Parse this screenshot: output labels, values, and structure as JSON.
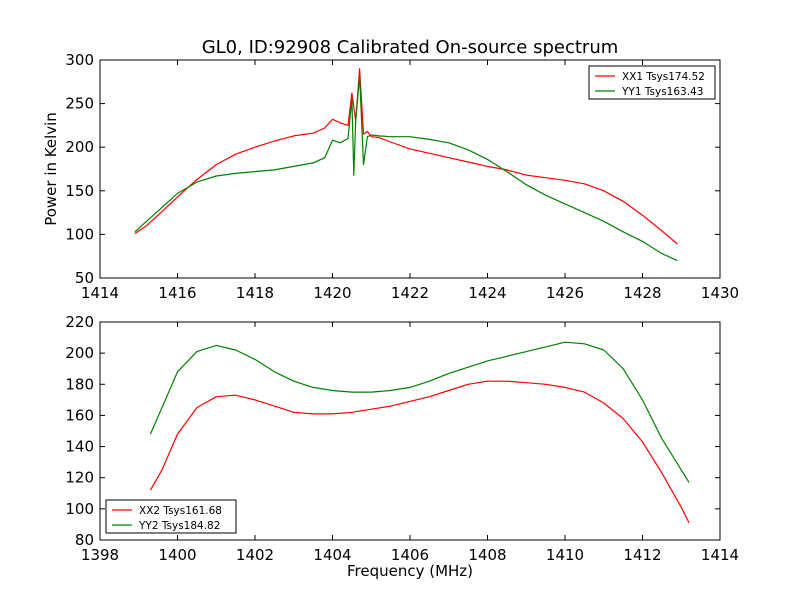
{
  "figure": {
    "title": "GL0, ID:92908 Calibrated On-source spectrum",
    "xlabel": "Frequency (MHz)"
  },
  "chart_data": [
    {
      "type": "line",
      "title": "GL0, ID:92908 Calibrated On-source spectrum",
      "xlabel": "",
      "ylabel": "Power in Kelvin",
      "xlim": [
        1414,
        1430
      ],
      "ylim": [
        50,
        300
      ],
      "xticks": [
        1414,
        1416,
        1418,
        1420,
        1422,
        1424,
        1426,
        1428,
        1430
      ],
      "yticks": [
        50,
        100,
        150,
        200,
        250,
        300
      ],
      "grid": false,
      "legend_position": "top-right",
      "series": [
        {
          "name": "XX1 Tsys174.52",
          "color": "#ff0000",
          "x": [
            1414.9,
            1415.2,
            1415.5,
            1416.0,
            1416.5,
            1417.0,
            1417.5,
            1418.0,
            1418.5,
            1419.0,
            1419.5,
            1419.8,
            1420.0,
            1420.2,
            1420.4,
            1420.5,
            1420.6,
            1420.7,
            1420.8,
            1420.9,
            1421.0,
            1421.2,
            1421.5,
            1422.0,
            1422.5,
            1423.0,
            1423.5,
            1424.0,
            1424.5,
            1425.0,
            1425.5,
            1426.0,
            1426.5,
            1427.0,
            1427.5,
            1428.0,
            1428.5,
            1428.9
          ],
          "y": [
            101,
            110,
            122,
            143,
            163,
            180,
            192,
            200,
            207,
            213,
            216,
            222,
            232,
            228,
            225,
            262,
            230,
            290,
            215,
            218,
            212,
            211,
            206,
            198,
            193,
            188,
            183,
            178,
            174,
            168,
            165,
            162,
            158,
            150,
            138,
            122,
            104,
            89
          ]
        },
        {
          "name": "YY1 Tsys163.43",
          "color": "#008000",
          "x": [
            1414.9,
            1415.2,
            1415.5,
            1416.0,
            1416.5,
            1417.0,
            1417.5,
            1418.0,
            1418.5,
            1419.0,
            1419.5,
            1419.8,
            1420.0,
            1420.2,
            1420.4,
            1420.5,
            1420.55,
            1420.6,
            1420.7,
            1420.8,
            1420.9,
            1421.0,
            1421.2,
            1421.5,
            1422.0,
            1422.5,
            1423.0,
            1423.5,
            1424.0,
            1424.5,
            1425.0,
            1425.5,
            1426.0,
            1426.5,
            1427.0,
            1427.5,
            1428.0,
            1428.5,
            1428.9
          ],
          "y": [
            103,
            115,
            127,
            147,
            160,
            167,
            170,
            172,
            174,
            178,
            182,
            188,
            208,
            205,
            210,
            255,
            168,
            230,
            282,
            180,
            212,
            214,
            213,
            212,
            212,
            209,
            205,
            197,
            186,
            172,
            157,
            145,
            135,
            125,
            115,
            103,
            92,
            78,
            70
          ]
        }
      ]
    },
    {
      "type": "line",
      "title": "",
      "xlabel": "Frequency (MHz)",
      "ylabel": "",
      "xlim": [
        1398,
        1414
      ],
      "ylim": [
        80,
        220
      ],
      "xticks": [
        1398,
        1400,
        1402,
        1404,
        1406,
        1408,
        1410,
        1412,
        1414
      ],
      "yticks": [
        80,
        100,
        120,
        140,
        160,
        180,
        200,
        220
      ],
      "grid": false,
      "legend_position": "bottom-left",
      "series": [
        {
          "name": "XX2 Tsys161.68",
          "color": "#ff0000",
          "x": [
            1399.3,
            1399.6,
            1400.0,
            1400.5,
            1401.0,
            1401.5,
            1402.0,
            1402.5,
            1403.0,
            1403.5,
            1404.0,
            1404.5,
            1405.0,
            1405.5,
            1406.0,
            1406.5,
            1407.0,
            1407.5,
            1408.0,
            1408.5,
            1409.0,
            1409.5,
            1410.0,
            1410.5,
            1411.0,
            1411.5,
            1412.0,
            1412.5,
            1413.0,
            1413.2
          ],
          "y": [
            112,
            125,
            148,
            165,
            172,
            173,
            170,
            166,
            162,
            161,
            161,
            162,
            164,
            166,
            169,
            172,
            176,
            180,
            182,
            182,
            181,
            180,
            178,
            175,
            168,
            158,
            143,
            123,
            101,
            91
          ]
        },
        {
          "name": "YY2 Tsys184.82",
          "color": "#008000",
          "x": [
            1399.3,
            1399.6,
            1400.0,
            1400.5,
            1401.0,
            1401.5,
            1402.0,
            1402.5,
            1403.0,
            1403.5,
            1404.0,
            1404.5,
            1405.0,
            1405.5,
            1406.0,
            1406.5,
            1407.0,
            1407.5,
            1408.0,
            1408.5,
            1409.0,
            1409.5,
            1410.0,
            1410.5,
            1411.0,
            1411.5,
            1412.0,
            1412.5,
            1413.0,
            1413.2
          ],
          "y": [
            148,
            165,
            188,
            201,
            205,
            202,
            196,
            188,
            182,
            178,
            176,
            175,
            175,
            176,
            178,
            182,
            187,
            191,
            195,
            198,
            201,
            204,
            207,
            206,
            202,
            190,
            170,
            145,
            125,
            117
          ]
        }
      ]
    }
  ]
}
